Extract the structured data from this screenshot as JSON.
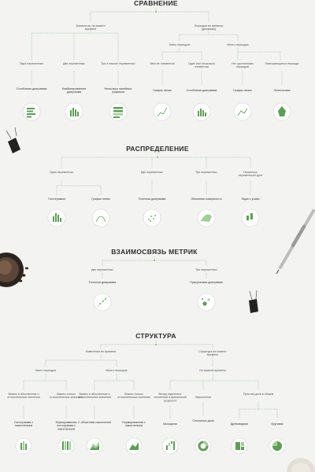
{
  "sections": {
    "comparison": {
      "title": "СРАВНЕНИЕ",
      "branch_items": "Элементов, на момент времени",
      "branch_time": "Периодов во времени (динамику)",
      "items_leaves": [
        "Пара переменных",
        "Две переменных",
        "Три и многие переменных"
      ],
      "time_sub": [
        "Мало периодов",
        "Много периодов"
      ],
      "time_leaves": [
        "Многие элементов",
        "Один или несколько элементов",
        "Нет циклических периодов",
        "Повторяющиеся периоды"
      ],
      "chart_labels": [
        "Столбчатая диаграмма",
        "Комбинированная диаграмма",
        "Несколько линейных графиков",
        "График линии",
        "Столбчатая диаграмма",
        "График линии",
        "Лепестковая"
      ]
    },
    "distribution": {
      "title": "РАСПРЕДЕЛЕНИЕ",
      "leaves": [
        "Одна переменная",
        "Две переменных",
        "Три переменных",
        "Несколько переменных/групп"
      ],
      "chart_labels": [
        "Гистограмма",
        "График линии",
        "Точечная диаграмма",
        "Объемная поверхность",
        "Ящик с усами"
      ]
    },
    "relationship": {
      "title": "ВЗАИМОСВЯЗЬ МЕТРИК",
      "leaves": [
        "Две переменных",
        "Три переменных"
      ],
      "chart_labels": [
        "Точечная диаграмма",
        "Пузырьковая диаграмма"
      ]
    },
    "structure": {
      "title": "СТРУКТУРА",
      "branch_time": "Изменения во времени",
      "branch_static": "Структура на момент времени",
      "time_sub": [
        "Мало периодов",
        "Много периодов"
      ],
      "static_sub": "Не важной времени",
      "time_leaves": [
        "Важны и абсолютные и относительные значения",
        "Важны только относительные значения",
        "Важны и абсолютные и относительные значения",
        "Важны только относительные значения"
      ],
      "static_leaves": [
        "Вклад отдельных элементов в финальный результат",
        "Накопление",
        "Простая доля в общем"
      ],
      "chart_labels": [
        "Гистограмма с накоплением",
        "Нормированная гистограмма с накоплением",
        "С областями накопления",
        "Нормированная с накоплением",
        "Каскадная",
        "Сплошные доли",
        "Древовидная",
        "Круговая"
      ]
    }
  }
}
